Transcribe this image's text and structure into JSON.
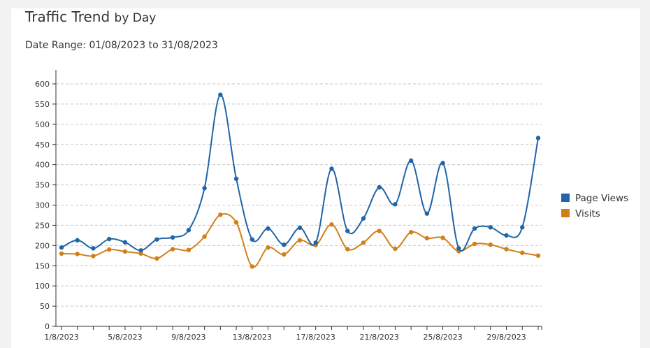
{
  "header": {
    "title": "Traffic Trend",
    "title_suffix": "by Day",
    "date_range": "Date Range: 01/08/2023 to 31/08/2023"
  },
  "chart_data": {
    "type": "line",
    "title": "Traffic Trend by Day",
    "x": [
      "1/8/2023",
      "2/8/2023",
      "3/8/2023",
      "4/8/2023",
      "5/8/2023",
      "6/8/2023",
      "7/8/2023",
      "8/8/2023",
      "9/8/2023",
      "10/8/2023",
      "11/8/2023",
      "12/8/2023",
      "13/8/2023",
      "14/8/2023",
      "15/8/2023",
      "16/8/2023",
      "17/8/2023",
      "18/8/2023",
      "19/8/2023",
      "20/8/2023",
      "21/8/2023",
      "22/8/2023",
      "23/8/2023",
      "24/8/2023",
      "25/8/2023",
      "26/8/2023",
      "27/8/2023",
      "28/8/2023",
      "29/8/2023",
      "30/8/2023",
      "31/8/2023"
    ],
    "x_tick_labels": [
      "1/8/2023",
      "5/8/2023",
      "9/8/2023",
      "13/8/2023",
      "17/8/2023",
      "21/8/2023",
      "25/8/2023",
      "29/8/2023"
    ],
    "y_ticks": [
      0,
      50,
      100,
      150,
      200,
      250,
      300,
      350,
      400,
      450,
      500,
      550,
      600
    ],
    "ylim": [
      0,
      620
    ],
    "grid": true,
    "legend_position": "right",
    "series": [
      {
        "name": "Page Views",
        "color": "#1f65a8",
        "values": [
          195,
          213,
          193,
          216,
          208,
          188,
          215,
          220,
          238,
          342,
          573,
          365,
          215,
          242,
          202,
          244,
          207,
          390,
          236,
          267,
          344,
          302,
          410,
          279,
          404,
          193,
          242,
          245,
          225,
          245,
          466
        ]
      },
      {
        "name": "Visits",
        "color": "#d17f1b",
        "values": [
          180,
          179,
          174,
          190,
          185,
          180,
          168,
          191,
          189,
          222,
          276,
          257,
          148,
          195,
          178,
          213,
          201,
          252,
          191,
          207,
          236,
          192,
          233,
          218,
          219,
          186,
          204,
          202,
          191,
          182,
          175
        ]
      }
    ]
  }
}
